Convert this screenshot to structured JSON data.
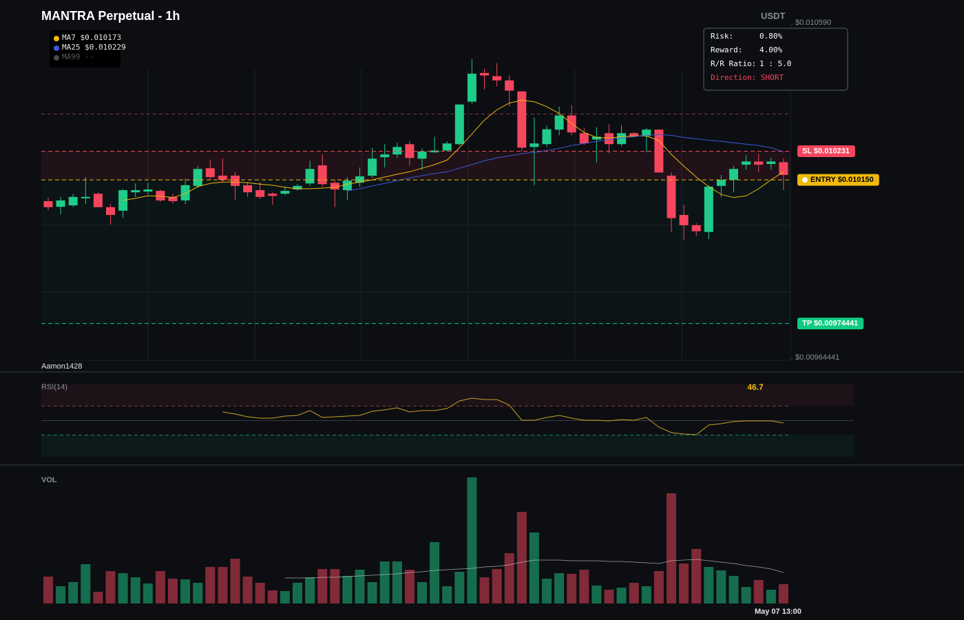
{
  "chart_data": [
    {
      "type": "candlestick",
      "title": "MANTRA Perpetual - 1h",
      "currency": "USDT",
      "watermark": "Aamon1428",
      "up_color": "#1fcc8a",
      "down_color": "#f6465d",
      "categories": [
        null,
        null,
        null,
        null,
        null,
        null,
        null,
        null,
        null,
        null,
        null,
        null,
        null,
        null,
        null,
        null,
        null,
        null,
        null,
        null,
        null,
        null,
        null,
        null,
        null,
        null,
        null,
        null,
        null,
        null,
        null,
        null,
        null,
        null,
        null,
        null,
        null,
        null,
        null,
        null,
        null,
        null,
        null,
        null,
        null,
        null,
        null,
        null,
        null,
        null,
        null,
        null,
        null,
        null,
        null,
        null,
        null,
        null,
        null,
        "May 07 13:00"
      ],
      "open": [
        0.01009,
        0.010074,
        0.010078,
        0.010098,
        0.010111,
        0.010073,
        0.010063,
        0.010115,
        0.010117,
        0.010119,
        0.010102,
        0.010092,
        0.010133,
        0.010183,
        0.010162,
        0.010162,
        0.010135,
        0.010121,
        0.010111,
        0.010111,
        0.010123,
        0.01014,
        0.010191,
        0.010142,
        0.010121,
        0.010142,
        0.010162,
        0.010214,
        0.010222,
        0.010251,
        0.01021,
        0.010228,
        0.010233,
        0.010251,
        0.010371,
        0.010452,
        0.010443,
        0.010431,
        0.0104,
        0.010243,
        0.010251,
        0.010292,
        0.010332,
        0.010282,
        0.010264,
        0.010282,
        0.010251,
        0.010282,
        0.010274,
        0.010292,
        0.010162,
        0.010051,
        0.010022,
        0.010003,
        0.010133,
        0.01015,
        0.010193,
        0.010202,
        0.010195,
        0.0102
      ],
      "high": [
        0.0101,
        0.010102,
        0.010111,
        0.010158,
        0.010115,
        0.010082,
        0.010125,
        0.01014,
        0.010142,
        0.010123,
        0.010111,
        0.010154,
        0.010189,
        0.010206,
        0.01021,
        0.010173,
        0.010144,
        0.010144,
        0.010115,
        0.010131,
        0.010138,
        0.010204,
        0.010222,
        0.01015,
        0.010158,
        0.010185,
        0.010241,
        0.010251,
        0.010255,
        0.010259,
        0.010239,
        0.010272,
        0.010259,
        0.010363,
        0.010491,
        0.010464,
        0.01048,
        0.010445,
        0.0104,
        0.010326,
        0.010303,
        0.010357,
        0.010361,
        0.010297,
        0.010299,
        0.010307,
        0.010305,
        0.010286,
        0.010297,
        0.010293,
        0.010171,
        0.01008,
        0.010028,
        0.010135,
        0.010164,
        0.010189,
        0.01022,
        0.010224,
        0.010212,
        0.01021
      ],
      "low": [
        0.010065,
        0.010053,
        0.010073,
        0.010082,
        0.010073,
        0.010024,
        0.010043,
        0.010102,
        0.010109,
        0.010088,
        0.010084,
        0.010082,
        0.010127,
        0.01015,
        0.010144,
        0.010094,
        0.010102,
        0.010096,
        0.01008,
        0.010107,
        0.010119,
        0.010133,
        0.010131,
        0.010073,
        0.010092,
        0.010131,
        0.010156,
        0.010185,
        0.010212,
        0.010191,
        0.010179,
        0.010226,
        0.01023,
        0.010247,
        0.010365,
        0.010406,
        0.010414,
        0.010357,
        0.010231,
        0.010135,
        0.010243,
        0.010276,
        0.010276,
        0.010249,
        0.0102,
        0.010226,
        0.010245,
        0.01027,
        0.010228,
        0.010171,
        0.010003,
        0.009981,
        0.009991,
        0.009983,
        0.010102,
        0.010115,
        0.010179,
        0.010173,
        0.010179,
        0.010121
      ],
      "close": [
        0.010073,
        0.010092,
        0.010102,
        0.010102,
        0.010073,
        0.010051,
        0.010121,
        0.010121,
        0.010123,
        0.010092,
        0.01009,
        0.010135,
        0.010181,
        0.010158,
        0.01015,
        0.010133,
        0.010115,
        0.010102,
        0.010105,
        0.010119,
        0.010133,
        0.010181,
        0.010138,
        0.010123,
        0.010148,
        0.01016,
        0.01021,
        0.010222,
        0.010243,
        0.010212,
        0.01023,
        0.010233,
        0.010253,
        0.010363,
        0.01045,
        0.010445,
        0.010431,
        0.010402,
        0.010241,
        0.010253,
        0.010293,
        0.010332,
        0.010284,
        0.010253,
        0.010272,
        0.010251,
        0.010282,
        0.010274,
        0.010292,
        0.010171,
        0.010042,
        0.010022,
        0.010005,
        0.010131,
        0.01015,
        0.010181,
        0.010202,
        0.010193,
        0.010202,
        0.010164
      ],
      "ylim": [
        0.00964441,
        0.01059
      ],
      "yticks": [
        {
          "value": 0.01059,
          "label": "$0.010590"
        },
        {
          "value": 0.00964441,
          "label": "$0.00964441"
        }
      ],
      "ma": [
        {
          "name": "MA7 $0.010173",
          "color": "#f0b90b",
          "values": [
            null,
            null,
            null,
            null,
            null,
            null,
            0.010092,
            0.010098,
            0.010105,
            0.010104,
            0.0101,
            0.010111,
            0.010131,
            0.01014,
            0.010144,
            0.010144,
            0.010142,
            0.010138,
            0.010135,
            0.010129,
            0.010125,
            0.010125,
            0.010127,
            0.010129,
            0.010138,
            0.010144,
            0.01015,
            0.010158,
            0.010166,
            0.010173,
            0.010183,
            0.010193,
            0.010206,
            0.010241,
            0.01028,
            0.010319,
            0.010348,
            0.010367,
            0.010375,
            0.010371,
            0.010357,
            0.010338,
            0.010309,
            0.010284,
            0.01027,
            0.010268,
            0.010272,
            0.010274,
            0.010274,
            0.010261,
            0.010222,
            0.010189,
            0.010158,
            0.010131,
            0.010109,
            0.0101,
            0.010105,
            0.010125,
            0.01015,
            0.010173
          ]
        },
        {
          "name": "MA25 $0.010229",
          "color": "#3b5bdb",
          "values": [
            null,
            null,
            null,
            null,
            null,
            null,
            null,
            null,
            null,
            null,
            null,
            null,
            null,
            null,
            null,
            null,
            null,
            null,
            null,
            null,
            null,
            null,
            null,
            null,
            0.010119,
            0.010125,
            0.010133,
            0.01014,
            0.010148,
            0.010156,
            0.010162,
            0.010168,
            0.010173,
            0.010183,
            0.010193,
            0.010204,
            0.010212,
            0.010218,
            0.010224,
            0.010228,
            0.010233,
            0.010239,
            0.010247,
            0.010253,
            0.010259,
            0.010264,
            0.010268,
            0.010272,
            0.010276,
            0.010278,
            0.010276,
            0.01027,
            0.010266,
            0.010262,
            0.010259,
            0.010255,
            0.010251,
            0.010247,
            0.010241,
            0.010229
          ]
        },
        {
          "name": "MA99 --",
          "color": "#4a4a4a"
        }
      ],
      "levels": [
        {
          "label": "SL $0.010231",
          "value": 0.010231,
          "color": "#f6465d"
        },
        {
          "label": "ENTRY $0.010150",
          "value": 0.01015,
          "color": "#f0b90b"
        },
        {
          "label": "TP $0.00974441",
          "value": 0.00974441,
          "color": "#0ecb81"
        }
      ],
      "guides": [
        0.010336
      ]
    },
    {
      "type": "line",
      "title": "RSI(14)",
      "color": "#c9a227",
      "ylim": [
        0,
        100
      ],
      "yticks": [
        30,
        50,
        70
      ],
      "values": [
        null,
        null,
        null,
        null,
        null,
        null,
        null,
        null,
        null,
        null,
        null,
        null,
        null,
        null,
        61.9,
        59.0,
        55.2,
        53.3,
        53.3,
        56.2,
        57.1,
        63.8,
        54.3,
        55.2,
        56.2,
        57.1,
        62.9,
        64.8,
        67.6,
        61.9,
        63.8,
        63.8,
        66.7,
        77.1,
        81.0,
        79.0,
        79.0,
        71.4,
        50.5,
        50.5,
        54.3,
        57.1,
        53.3,
        50.5,
        50.5,
        49.5,
        51.4,
        50.5,
        54.3,
        41.0,
        33.3,
        31.4,
        30.5,
        43.8,
        45.7,
        48.6,
        49.5,
        49.5,
        49.5,
        46.7
      ]
    },
    {
      "type": "bar",
      "title": "VOL",
      "ylim": [
        0,
        190
      ],
      "values": [
        39,
        25,
        31,
        57,
        17,
        47,
        44,
        38,
        29,
        47,
        36,
        35,
        30,
        53,
        53,
        65,
        39,
        30,
        19,
        18,
        30,
        38,
        50,
        50,
        40,
        49,
        31,
        61,
        61,
        49,
        31,
        89,
        25,
        46,
        183,
        38,
        50,
        73,
        133,
        103,
        36,
        44,
        43,
        49,
        26,
        20,
        23,
        30,
        25,
        47,
        160,
        58,
        79,
        53,
        48,
        40,
        24,
        34,
        20,
        28
      ],
      "ma_values": [
        null,
        null,
        null,
        null,
        null,
        null,
        null,
        null,
        null,
        null,
        null,
        null,
        null,
        null,
        null,
        null,
        null,
        null,
        null,
        37,
        37,
        37,
        38,
        38,
        39,
        40,
        41,
        42,
        43,
        45,
        46,
        48,
        49,
        50,
        51,
        53,
        54,
        56,
        60,
        63,
        63,
        63,
        62,
        62,
        62,
        61,
        61,
        60,
        59,
        58,
        62,
        63,
        64,
        62,
        60,
        58,
        55,
        53,
        50,
        45
      ]
    }
  ],
  "trade_box": {
    "rows": [
      [
        "Risk:",
        "0.80%"
      ],
      [
        "Reward:",
        "4.00%"
      ],
      [
        "R/R Ratio:",
        "1 : 5.0"
      ]
    ],
    "direction": "Direction: SHORT"
  }
}
